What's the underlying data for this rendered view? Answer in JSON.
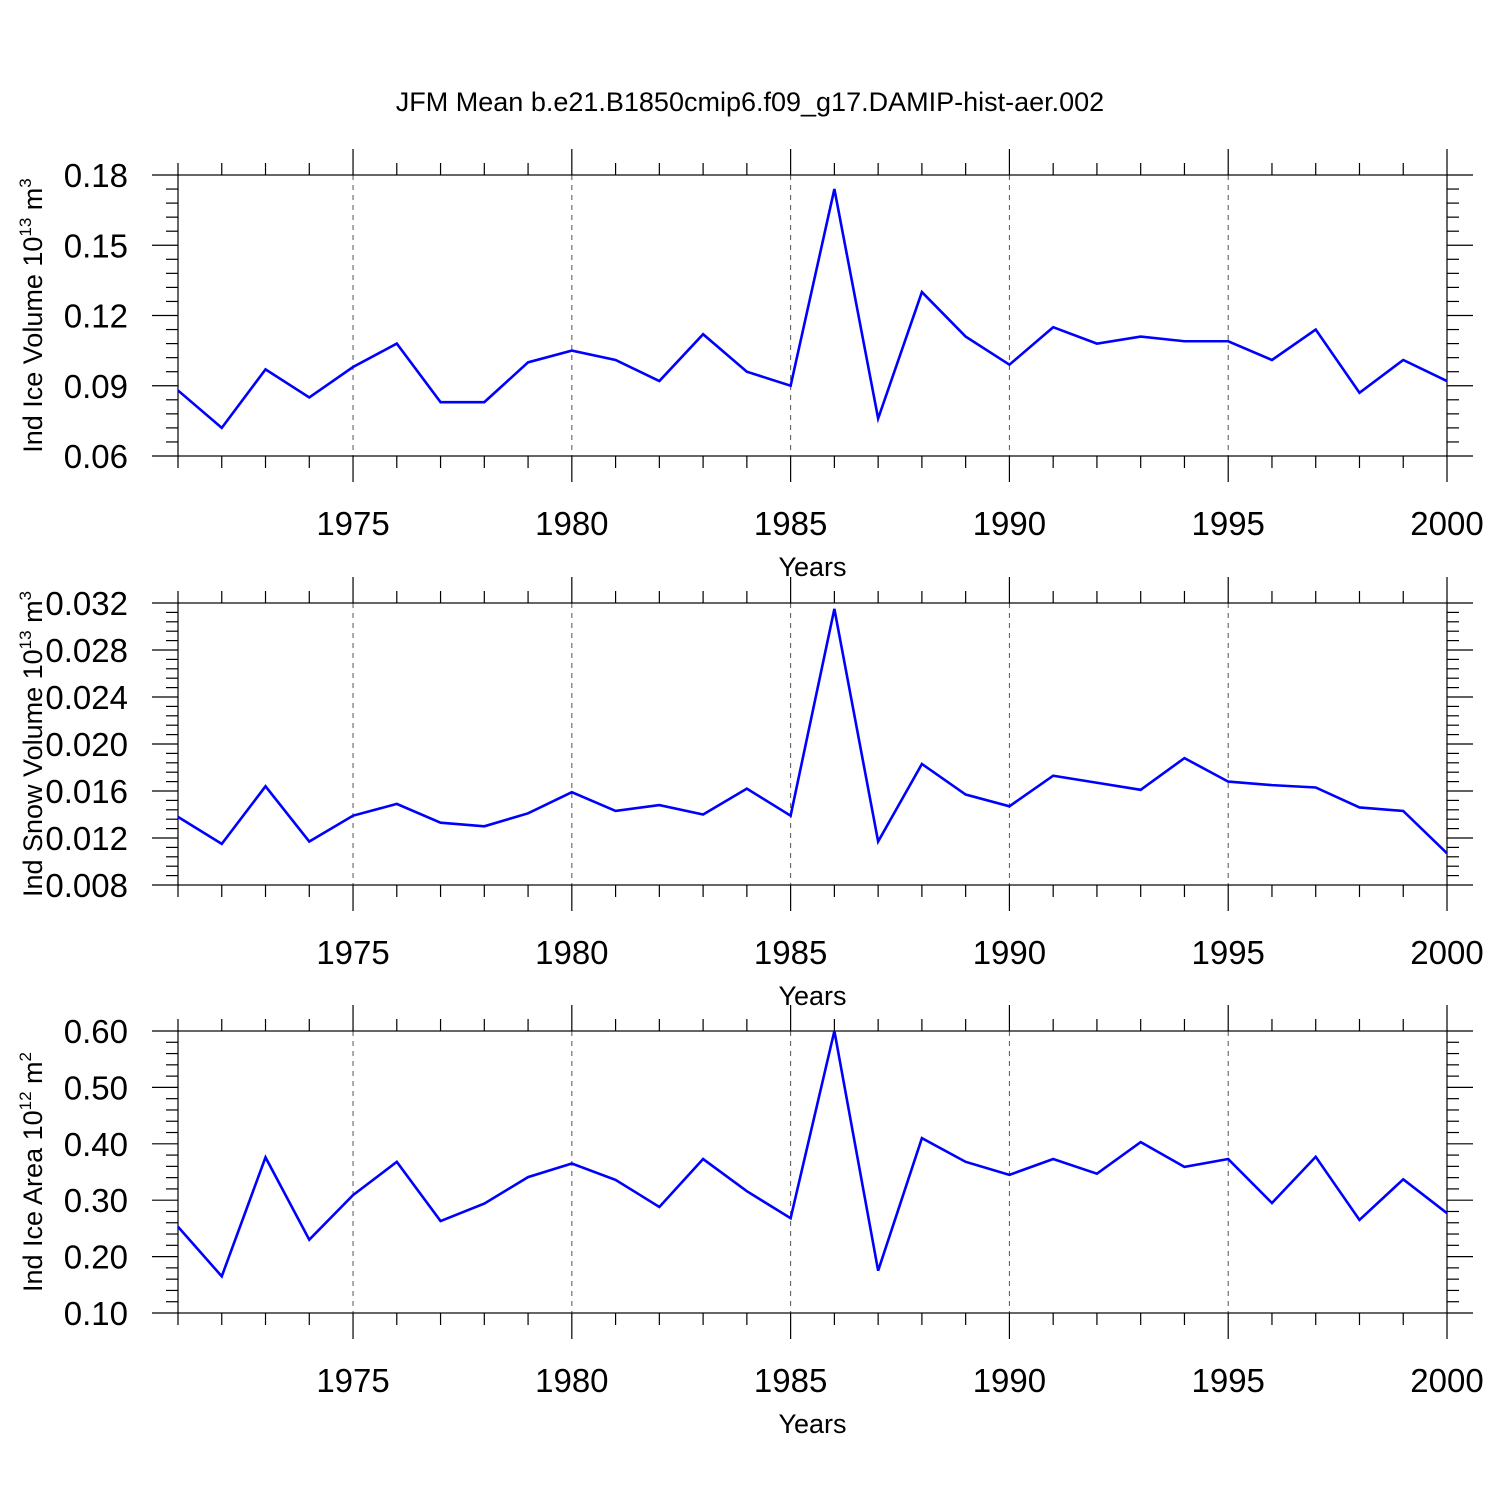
{
  "figure_title": "JFM Mean b.e21.B1850cmip6.f09_g17.DAMIP-hist-aer.002",
  "colors": {
    "line": "#0000ff",
    "frame": "#000000",
    "grid": "#555555"
  },
  "chart_data": [
    {
      "type": "line",
      "ylabel": {
        "text": "Ind Ice Volume 10",
        "sup": "13",
        "unit": " m",
        "unit_sup": "3"
      },
      "xlabel": "Years",
      "xlim": [
        1971,
        2000
      ],
      "ylim": [
        0.06,
        0.18
      ],
      "yticks": [
        "0.06",
        "0.09",
        "0.12",
        "0.15",
        "0.18"
      ],
      "xticks": [
        "1975",
        "1980",
        "1985",
        "1990",
        "1995",
        "2000"
      ],
      "grid": "vertical dashed at major x ticks",
      "x": [
        1971,
        1972,
        1973,
        1974,
        1975,
        1976,
        1977,
        1978,
        1979,
        1980,
        1981,
        1982,
        1983,
        1984,
        1985,
        1986,
        1987,
        1988,
        1989,
        1990,
        1991,
        1992,
        1993,
        1994,
        1995,
        1996,
        1997,
        1998,
        1999,
        2000
      ],
      "series": [
        {
          "values": [
            0.088,
            0.072,
            0.097,
            0.085,
            0.098,
            0.108,
            0.083,
            0.083,
            0.1,
            0.105,
            0.101,
            0.092,
            0.112,
            0.096,
            0.09,
            0.174,
            0.076,
            0.13,
            0.111,
            0.099,
            0.115,
            0.108,
            0.111,
            0.109,
            0.109,
            0.101,
            0.114,
            0.087,
            0.101,
            0.092
          ]
        }
      ]
    },
    {
      "type": "line",
      "ylabel": {
        "text": "Ind Snow Volume 10",
        "sup": "13",
        "unit": " m",
        "unit_sup": "3"
      },
      "xlabel": "Years",
      "xlim": [
        1971,
        2000
      ],
      "ylim": [
        0.008,
        0.032
      ],
      "yticks": [
        "0.008",
        "0.012",
        "0.016",
        "0.020",
        "0.024",
        "0.028",
        "0.032"
      ],
      "xticks": [
        "1975",
        "1980",
        "1985",
        "1990",
        "1995",
        "2000"
      ],
      "grid": "vertical dashed at major x ticks",
      "x": [
        1971,
        1972,
        1973,
        1974,
        1975,
        1976,
        1977,
        1978,
        1979,
        1980,
        1981,
        1982,
        1983,
        1984,
        1985,
        1986,
        1987,
        1988,
        1989,
        1990,
        1991,
        1992,
        1993,
        1994,
        1995,
        1996,
        1997,
        1998,
        1999,
        2000
      ],
      "series": [
        {
          "values": [
            0.0138,
            0.0115,
            0.0164,
            0.0117,
            0.0139,
            0.0149,
            0.0133,
            0.013,
            0.0141,
            0.0159,
            0.0143,
            0.0148,
            0.014,
            0.0162,
            0.0139,
            0.0315,
            0.0117,
            0.0183,
            0.0157,
            0.0147,
            0.0173,
            0.0167,
            0.0161,
            0.0188,
            0.0168,
            0.0165,
            0.0163,
            0.0146,
            0.0143,
            0.0107
          ]
        }
      ]
    },
    {
      "type": "line",
      "ylabel": {
        "text": "Ind Ice Area 10",
        "sup": "12",
        "unit": " m",
        "unit_sup": "2"
      },
      "xlabel": "Years",
      "xlim": [
        1971,
        2000
      ],
      "ylim": [
        0.1,
        0.6
      ],
      "yticks": [
        "0.10",
        "0.20",
        "0.30",
        "0.40",
        "0.50",
        "0.60"
      ],
      "xticks": [
        "1975",
        "1980",
        "1985",
        "1990",
        "1995",
        "2000"
      ],
      "grid": "vertical dashed at major x ticks",
      "x": [
        1971,
        1972,
        1973,
        1974,
        1975,
        1976,
        1977,
        1978,
        1979,
        1980,
        1981,
        1982,
        1983,
        1984,
        1985,
        1986,
        1987,
        1988,
        1989,
        1990,
        1991,
        1992,
        1993,
        1994,
        1995,
        1996,
        1997,
        1998,
        1999,
        2000
      ],
      "series": [
        {
          "values": [
            0.253,
            0.165,
            0.376,
            0.23,
            0.309,
            0.368,
            0.263,
            0.294,
            0.341,
            0.365,
            0.336,
            0.288,
            0.373,
            0.316,
            0.268,
            0.6,
            0.175,
            0.41,
            0.368,
            0.345,
            0.373,
            0.347,
            0.403,
            0.359,
            0.373,
            0.295,
            0.377,
            0.265,
            0.337,
            0.277
          ]
        }
      ]
    }
  ]
}
